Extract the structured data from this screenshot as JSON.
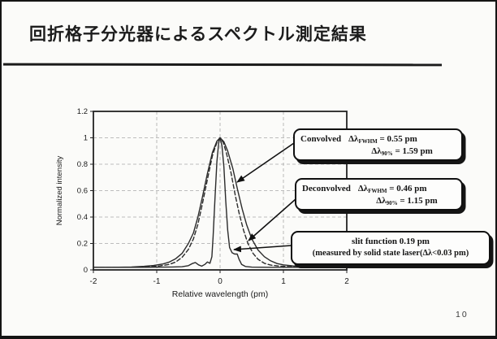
{
  "slide": {
    "title": "回折格子分光器によるスペクトル測定結果",
    "page_number": "10"
  },
  "annotations": {
    "convolved": {
      "label": "Convolved",
      "l1_sym": "Δλ",
      "l1_sub": "FWHM",
      "l1_rest": " = 0.55 pm",
      "l2_sym": "Δλ",
      "l2_sub": "90%",
      "l2_rest": " = 1.59 pm"
    },
    "deconvolved": {
      "label": "Deconvolved",
      "l1_sym": "Δλ",
      "l1_sub": "FWHM",
      "l1_rest": " = 0.46 pm",
      "l2_sym": "Δλ",
      "l2_sub": "90%",
      "l2_rest": " = 1.15 pm"
    },
    "slit": {
      "line1": "slit function 0.19 pm",
      "line2": "(measured by solid state laser(Δλ<0.03 pm)"
    }
  },
  "colors": {
    "ink": "#1a1a1a",
    "frame": "#222222",
    "grid": "#a9a9a9",
    "curve": "#2b2b2b",
    "arrow": "#111111"
  },
  "chart_data": {
    "type": "line",
    "title": "",
    "xlabel": "Relative wavelength (pm)",
    "ylabel": "Normalized intensity",
    "xlim": [
      -2,
      2
    ],
    "ylim": [
      0,
      1.2
    ],
    "x_ticks": [
      -2,
      -1,
      0,
      1,
      2
    ],
    "y_ticks": [
      0,
      0.2,
      0.4,
      0.6,
      0.8,
      1,
      1.2
    ],
    "grid": true,
    "legend_position": "none",
    "series": [
      {
        "name": "Convolved",
        "fwhm_pm": 0.55,
        "width_90pct_pm": 1.59,
        "style": "solid",
        "points": [
          [
            -2.0,
            0.02
          ],
          [
            -1.7,
            0.02
          ],
          [
            -1.4,
            0.022
          ],
          [
            -1.2,
            0.027
          ],
          [
            -1.05,
            0.033
          ],
          [
            -0.9,
            0.045
          ],
          [
            -0.8,
            0.06
          ],
          [
            -0.7,
            0.085
          ],
          [
            -0.6,
            0.125
          ],
          [
            -0.5,
            0.2
          ],
          [
            -0.42,
            0.28
          ],
          [
            -0.35,
            0.4
          ],
          [
            -0.28,
            0.55
          ],
          [
            -0.2,
            0.73
          ],
          [
            -0.12,
            0.89
          ],
          [
            -0.05,
            0.975
          ],
          [
            0.0,
            1.0
          ],
          [
            0.06,
            0.97
          ],
          [
            0.12,
            0.9
          ],
          [
            0.2,
            0.77
          ],
          [
            0.28,
            0.6
          ],
          [
            0.35,
            0.46
          ],
          [
            0.42,
            0.34
          ],
          [
            0.5,
            0.235
          ],
          [
            0.6,
            0.15
          ],
          [
            0.7,
            0.1
          ],
          [
            0.8,
            0.068
          ],
          [
            0.9,
            0.048
          ],
          [
            1.0,
            0.038
          ],
          [
            1.15,
            0.03
          ],
          [
            1.35,
            0.025
          ],
          [
            1.6,
            0.022
          ],
          [
            2.0,
            0.02
          ]
        ]
      },
      {
        "name": "Deconvolved",
        "fwhm_pm": 0.46,
        "width_90pct_pm": 1.15,
        "style": "dashed",
        "points": [
          [
            -2.0,
            0.02
          ],
          [
            -1.4,
            0.02
          ],
          [
            -1.1,
            0.024
          ],
          [
            -0.95,
            0.03
          ],
          [
            -0.8,
            0.042
          ],
          [
            -0.7,
            0.06
          ],
          [
            -0.6,
            0.095
          ],
          [
            -0.5,
            0.155
          ],
          [
            -0.42,
            0.235
          ],
          [
            -0.35,
            0.345
          ],
          [
            -0.28,
            0.5
          ],
          [
            -0.2,
            0.685
          ],
          [
            -0.12,
            0.865
          ],
          [
            -0.05,
            0.965
          ],
          [
            0.0,
            1.0
          ],
          [
            0.05,
            0.965
          ],
          [
            0.1,
            0.885
          ],
          [
            0.17,
            0.74
          ],
          [
            0.24,
            0.565
          ],
          [
            0.3,
            0.43
          ],
          [
            0.37,
            0.3
          ],
          [
            0.44,
            0.2
          ],
          [
            0.52,
            0.125
          ],
          [
            0.6,
            0.08
          ],
          [
            0.7,
            0.05
          ],
          [
            0.8,
            0.036
          ],
          [
            0.95,
            0.028
          ],
          [
            1.2,
            0.022
          ],
          [
            1.6,
            0.02
          ],
          [
            2.0,
            0.02
          ]
        ]
      },
      {
        "name": "slit function",
        "fwhm_pm": 0.19,
        "style": "solid",
        "points": [
          [
            -2.0,
            0.02
          ],
          [
            -1.2,
            0.02
          ],
          [
            -0.75,
            0.022
          ],
          [
            -0.6,
            0.024
          ],
          [
            -0.5,
            0.032
          ],
          [
            -0.44,
            0.048
          ],
          [
            -0.39,
            0.056
          ],
          [
            -0.34,
            0.038
          ],
          [
            -0.29,
            0.028
          ],
          [
            -0.24,
            0.042
          ],
          [
            -0.2,
            0.06
          ],
          [
            -0.16,
            0.05
          ],
          [
            -0.13,
            0.1
          ],
          [
            -0.11,
            0.25
          ],
          [
            -0.08,
            0.55
          ],
          [
            -0.05,
            0.82
          ],
          [
            -0.02,
            0.97
          ],
          [
            0.0,
            1.0
          ],
          [
            0.03,
            0.94
          ],
          [
            0.06,
            0.78
          ],
          [
            0.09,
            0.52
          ],
          [
            0.12,
            0.3
          ],
          [
            0.15,
            0.17
          ],
          [
            0.19,
            0.13
          ],
          [
            0.23,
            0.12
          ],
          [
            0.27,
            0.12
          ],
          [
            0.3,
            0.08
          ],
          [
            0.34,
            0.042
          ],
          [
            0.4,
            0.026
          ],
          [
            0.5,
            0.021
          ],
          [
            0.8,
            0.02
          ],
          [
            2.0,
            0.02
          ]
        ]
      }
    ]
  }
}
